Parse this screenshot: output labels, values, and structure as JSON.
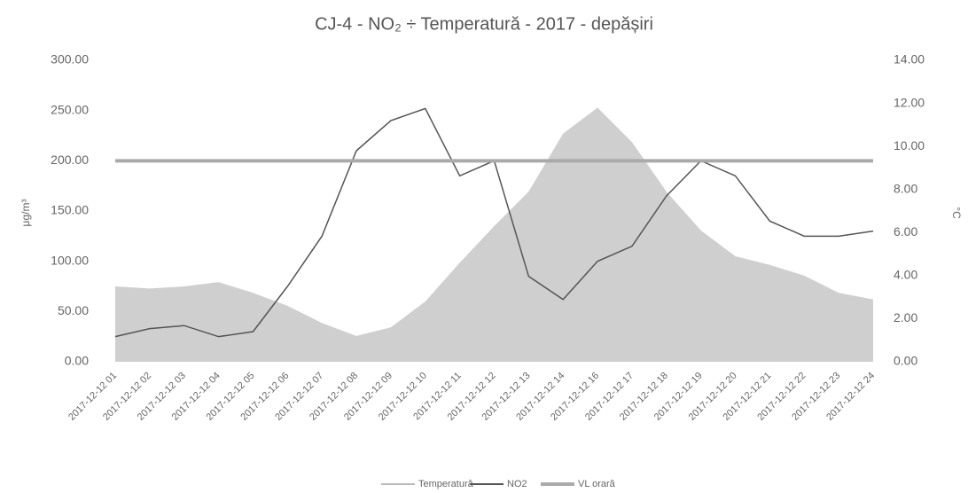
{
  "chart_data": {
    "type": "line",
    "title": "CJ-4 - NO₂ ÷ Temperatură - 2017 - depășiri",
    "y_label": "μg/m³",
    "y2_label": "°C",
    "categories": [
      "2017-12-12 01",
      "2017-12-12 02",
      "2017-12-12 03",
      "2017-12-12 04",
      "2017-12-12 05",
      "2017-12-12 06",
      "2017-12-12 07",
      "2017-12-12 08",
      "2017-12-12 09",
      "2017-12-12 10",
      "2017-12-12 11",
      "2017-12-12 12",
      "2017-12-12 13",
      "2017-12-12 14",
      "2017-12-12 16",
      "2017-12-12 17",
      "2017-12-12 18",
      "2017-12-12 19",
      "2017-12-12 20",
      "2017-12-12 21",
      "2017-12-12 22",
      "2017-12-12 23",
      "2017-12-12 24"
    ],
    "series": [
      {
        "name": "Temperatură",
        "type": "area",
        "axis": "y2",
        "color": "#cfcfcf",
        "values": [
          3.5,
          3.4,
          3.5,
          3.7,
          3.2,
          2.6,
          1.8,
          1.2,
          1.6,
          2.8,
          4.6,
          6.3,
          7.9,
          10.6,
          11.8,
          10.2,
          7.9,
          6.1,
          4.9,
          4.5,
          4.0,
          3.2,
          2.9
        ]
      },
      {
        "name": "NO2",
        "type": "line",
        "axis": "y",
        "color": "#555555",
        "values": [
          25,
          33,
          36,
          25,
          30,
          75,
          125,
          210,
          240,
          252,
          185,
          200,
          85,
          62,
          100,
          115,
          165,
          200,
          185,
          140,
          125,
          125,
          130
        ]
      },
      {
        "name": "VL orară",
        "type": "line",
        "axis": "y",
        "color": "#aaaaaa",
        "width": 4,
        "values": [
          200,
          200,
          200,
          200,
          200,
          200,
          200,
          200,
          200,
          200,
          200,
          200,
          200,
          200,
          200,
          200,
          200,
          200,
          200,
          200,
          200,
          200,
          200
        ]
      }
    ],
    "ylim": [
      0,
      300
    ],
    "yticks": [
      {
        "value": 0,
        "label": "0.00"
      },
      {
        "value": 50,
        "label": "50.00"
      },
      {
        "value": 100,
        "label": "100.00"
      },
      {
        "value": 150,
        "label": "150.00"
      },
      {
        "value": 200,
        "label": "200.00"
      },
      {
        "value": 250,
        "label": "250.00"
      },
      {
        "value": 300,
        "label": "300.00"
      }
    ],
    "y2lim": [
      0,
      14
    ],
    "y2ticks": [
      {
        "value": 0,
        "label": "0.00"
      },
      {
        "value": 2,
        "label": "2.00"
      },
      {
        "value": 4,
        "label": "4.00"
      },
      {
        "value": 6,
        "label": "6.00"
      },
      {
        "value": 8,
        "label": "8.00"
      },
      {
        "value": 10,
        "label": "10.00"
      },
      {
        "value": 12,
        "label": "12.00"
      },
      {
        "value": 14,
        "label": "14.00"
      }
    ],
    "legend": "bottom"
  }
}
